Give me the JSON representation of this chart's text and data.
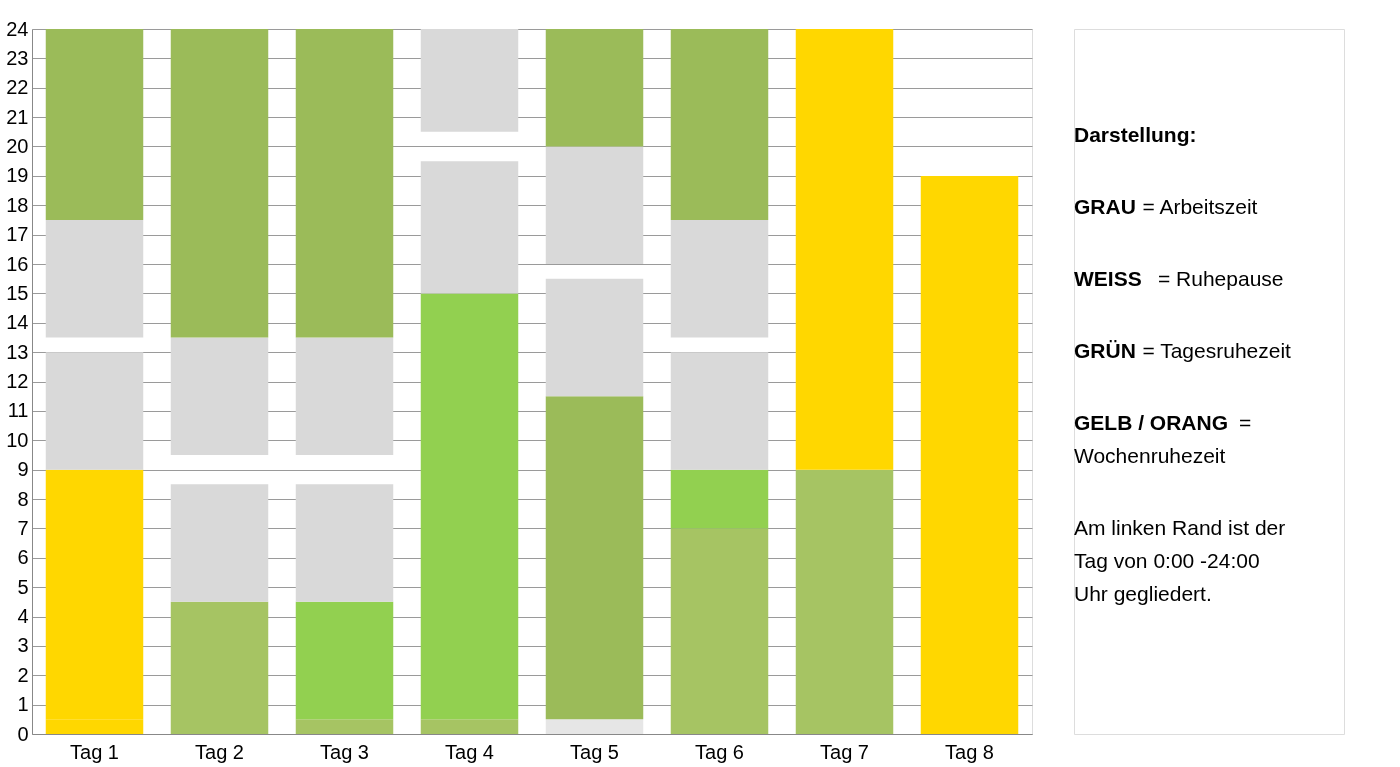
{
  "chart_data": {
    "type": "bar",
    "categories": [
      "Tag 1",
      "Tag 2",
      "Tag 3",
      "Tag 4",
      "Tag 5",
      "Tag 6",
      "Tag 7",
      "Tag 8"
    ],
    "series": [
      {
        "colors": [
          "#ffd700",
          "#a6c463",
          "#a6c463",
          "#a6c463",
          "#e6e6e6",
          "#a6c463",
          "#a6c463",
          "#ffd700"
        ],
        "base": [
          0,
          0,
          0,
          0,
          0,
          0,
          0,
          0
        ],
        "values": [
          0.5,
          4.5,
          0.5,
          0.5,
          0.5,
          7,
          9,
          19
        ]
      },
      {
        "colors": [
          "#ffd700",
          "#d9d9d9",
          "#92d050",
          "#92d050",
          "#9bbb59",
          "#92d050",
          "#ffd700",
          null
        ],
        "base": [
          0.5,
          4.5,
          0.5,
          0.5,
          0.5,
          7,
          9,
          null
        ],
        "values": [
          8.5,
          4,
          4,
          14.5,
          11,
          2,
          15,
          null
        ]
      },
      {
        "colors": [
          "#d9d9d9",
          "#d9d9d9",
          "#d9d9d9",
          "#d9d9d9",
          "#d9d9d9",
          "#d9d9d9",
          null,
          null
        ],
        "base": [
          9,
          9.5,
          4.5,
          15,
          11.5,
          9,
          null,
          null
        ],
        "values": [
          4,
          4,
          4,
          4.5,
          4,
          4,
          null,
          null
        ]
      },
      {
        "colors": [
          "#d9d9d9",
          "#9bbb59",
          "#d9d9d9",
          "#d9d9d9",
          "#d9d9d9",
          "#d9d9d9",
          null,
          null
        ],
        "base": [
          13.5,
          13.5,
          9.5,
          20.5,
          16,
          13.5,
          null,
          null
        ],
        "values": [
          4,
          10.5,
          4,
          3.5,
          4,
          4,
          null,
          null
        ]
      },
      {
        "colors": [
          "#9bbb59",
          null,
          "#9bbb59",
          null,
          "#9bbb59",
          "#9bbb59",
          null,
          null
        ],
        "base": [
          17.5,
          null,
          13.5,
          null,
          20,
          17.5,
          null,
          null
        ],
        "values": [
          6.5,
          null,
          10.5,
          null,
          4,
          6.5,
          null,
          null
        ]
      }
    ],
    "ylim": [
      0,
      24
    ],
    "yticks": [
      0,
      1,
      2,
      3,
      4,
      5,
      6,
      7,
      8,
      9,
      10,
      11,
      12,
      13,
      14,
      15,
      16,
      17,
      18,
      19,
      20,
      21,
      22,
      23,
      24
    ],
    "grid": "y",
    "annotations": [
      "Darstellung:",
      "GRAU = Arbeitszeit",
      "WEISS = Ruhepause",
      "GRÜN = Tagesruhezeit",
      "GELB / ORANG =\nWochenruhezeit",
      "Am linken Rand ist der\nTag von 0:00 -24:00\nUhr gegliedert."
    ]
  }
}
